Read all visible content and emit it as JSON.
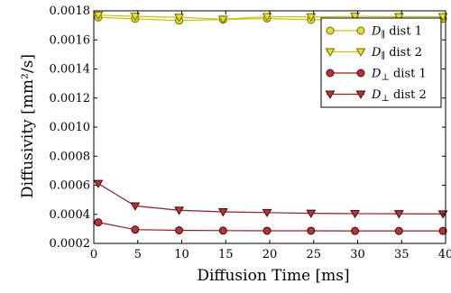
{
  "chart_data": {
    "type": "line",
    "title": "",
    "xlabel": "Diffusion Time [ms]",
    "ylabel": "Diffusivity [mm²/s]",
    "xlim": [
      0,
      40
    ],
    "ylim": [
      0.0002,
      0.0018
    ],
    "x_ticks": [
      "0",
      "5",
      "10",
      "15",
      "20",
      "25",
      "30",
      "35",
      "40"
    ],
    "y_ticks": [
      "0.0002",
      "0.0004",
      "0.0006",
      "0.0008",
      "0.0010",
      "0.0012",
      "0.0014",
      "0.0016",
      "0.0018"
    ],
    "grid": false,
    "legend_position": "top-right",
    "x": [
      0.5,
      4.7,
      9.7,
      14.7,
      19.7,
      24.7,
      29.7,
      34.7,
      39.7
    ],
    "series": [
      {
        "name": "D∥ dist 1",
        "symbol": "D",
        "subscript": "∥",
        "suffix": " dist 1",
        "marker": "circle",
        "line_color": "#cdc200",
        "marker_fill": "#e8df2c",
        "marker_stroke": "#6f6a00",
        "values": [
          0.001755,
          0.001745,
          0.001733,
          0.00174,
          0.001748,
          0.001738,
          0.001742,
          0.001745,
          0.001745
        ]
      },
      {
        "name": "D∥ dist 2",
        "symbol": "D",
        "subscript": "∥",
        "suffix": " dist 2",
        "marker": "triangle-down",
        "line_color": "#cdc200",
        "marker_fill": "#e8df2c",
        "marker_stroke": "#6f6a00",
        "values": [
          0.00177,
          0.001762,
          0.001755,
          0.001742,
          0.00176,
          0.001758,
          0.001762,
          0.00176,
          0.00176
        ]
      },
      {
        "name": "D⊥ dist 1",
        "symbol": "D",
        "subscript": "⊥",
        "suffix": " dist 1",
        "marker": "circle",
        "line_color": "#9b1c1c",
        "marker_fill": "#b83232",
        "marker_stroke": "#4a0a0a",
        "values": [
          0.000345,
          0.000295,
          0.00029,
          0.000288,
          0.000287,
          0.000287,
          0.000286,
          0.000286,
          0.000286
        ]
      },
      {
        "name": "D⊥ dist 2",
        "symbol": "D",
        "subscript": "⊥",
        "suffix": " dist 2",
        "marker": "triangle-down",
        "line_color": "#9b1c1c",
        "marker_fill": "#b83232",
        "marker_stroke": "#4a0a0a",
        "values": [
          0.000612,
          0.000458,
          0.000428,
          0.000417,
          0.000412,
          0.000407,
          0.000405,
          0.000404,
          0.000403
        ]
      }
    ]
  }
}
